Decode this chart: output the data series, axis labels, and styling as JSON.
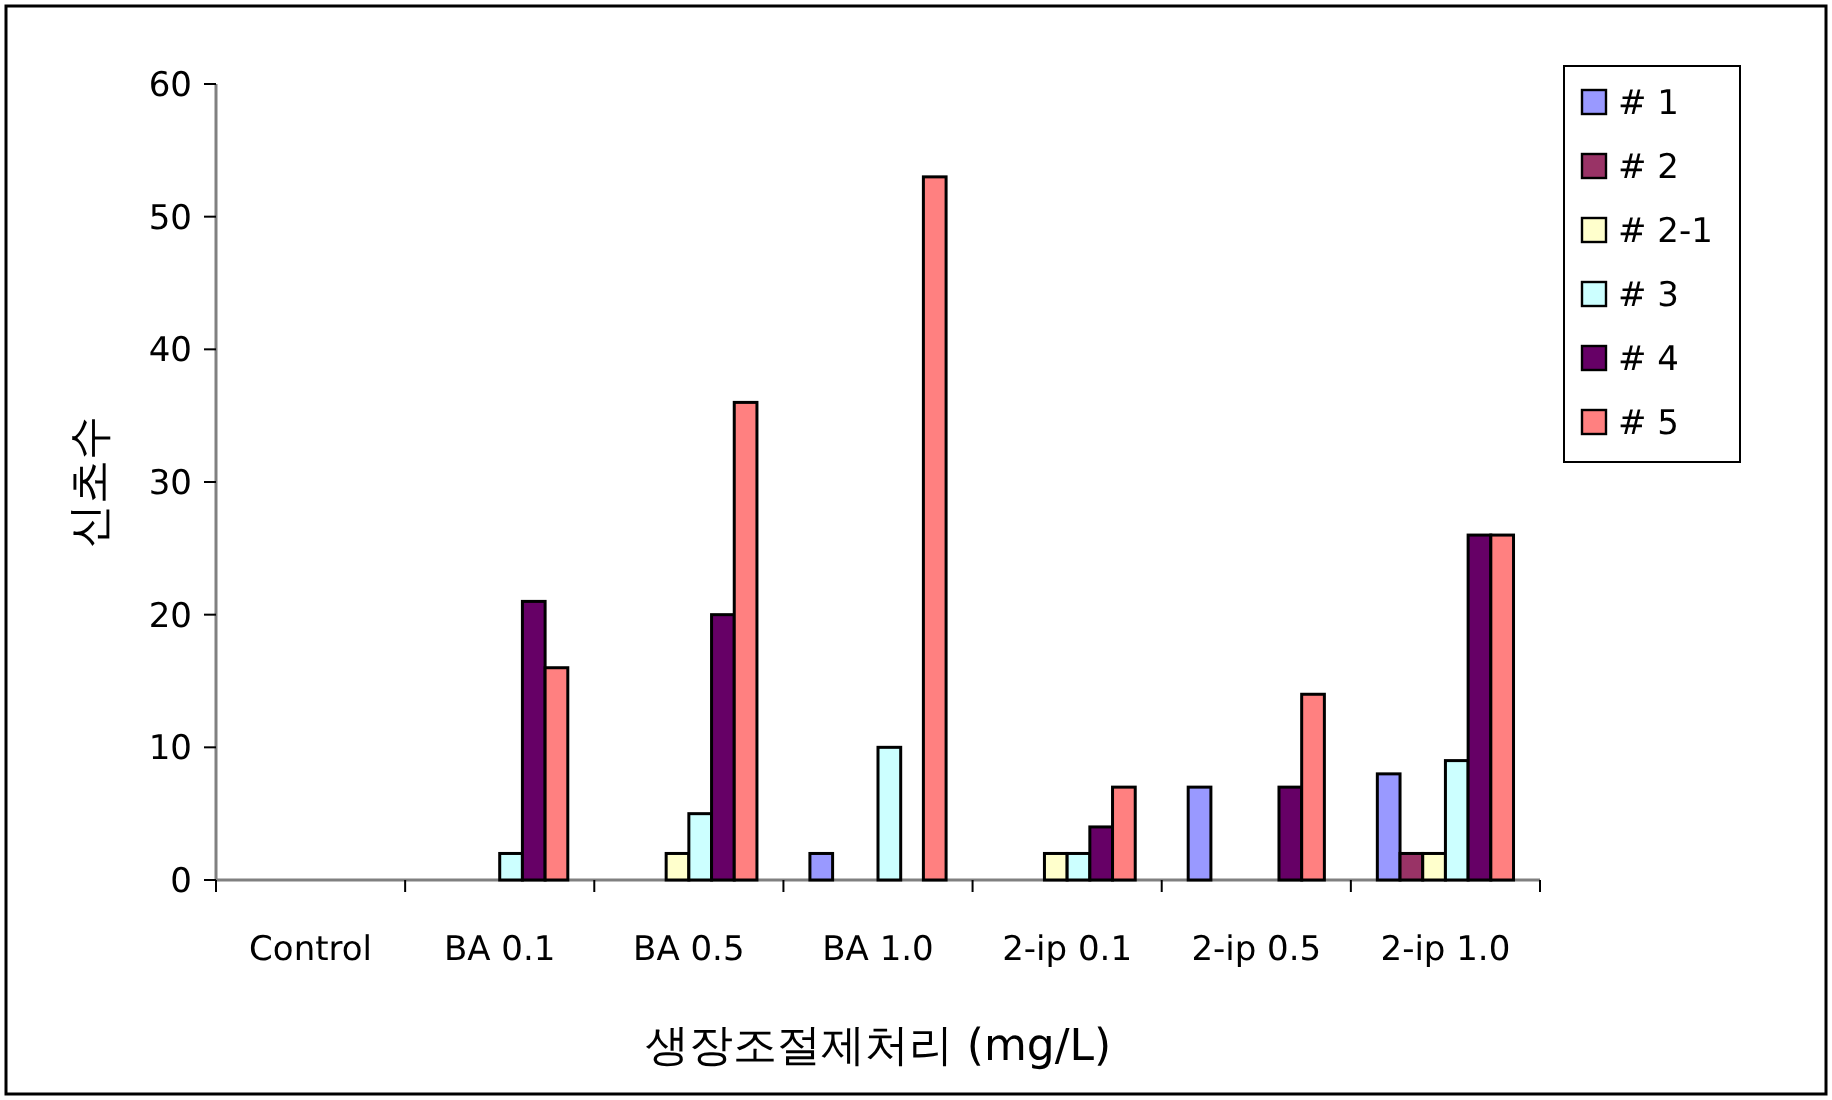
{
  "chart_data": {
    "type": "bar",
    "xlabel": "생장조절제처리 (mg/L)",
    "ylabel": "신초수",
    "categories": [
      "Control",
      "BA 0.1",
      "BA 0.5",
      "BA 1.0",
      "2-ip 0.1",
      "2-ip 0.5",
      "2-ip 1.0"
    ],
    "series": [
      {
        "name": "# 1",
        "color": "#9999ff",
        "values": [
          0,
          0,
          0,
          2,
          0,
          7,
          8
        ]
      },
      {
        "name": "# 2",
        "color": "#993366",
        "values": [
          0,
          0,
          0,
          0,
          0,
          0,
          2
        ]
      },
      {
        "name": "# 2-1",
        "color": "#ffffcc",
        "values": [
          0,
          0,
          2,
          0,
          2,
          0,
          2
        ]
      },
      {
        "name": "# 3",
        "color": "#ccffff",
        "values": [
          0,
          2,
          5,
          10,
          2,
          0,
          9
        ]
      },
      {
        "name": "# 4",
        "color": "#660066",
        "values": [
          0,
          21,
          20,
          0,
          4,
          7,
          26
        ]
      },
      {
        "name": "# 5",
        "color": "#ff8080",
        "values": [
          0,
          16,
          36,
          53,
          7,
          14,
          26
        ]
      }
    ],
    "ylim": [
      0,
      60
    ],
    "yticks": [
      0,
      10,
      20,
      30,
      40,
      50,
      60
    ],
    "grid": false,
    "legend": "top right"
  }
}
